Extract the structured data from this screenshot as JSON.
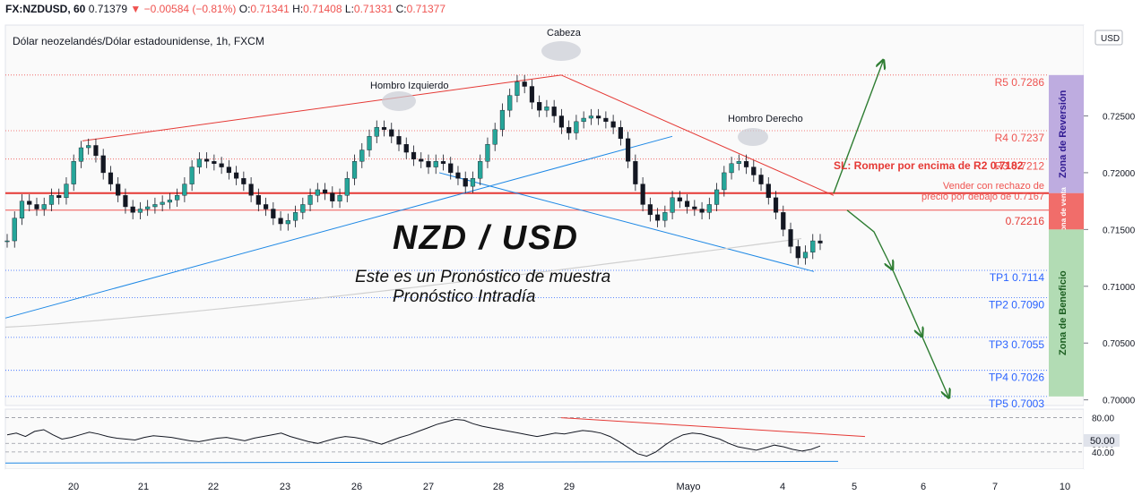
{
  "header": {
    "symbol": "FX:NZDUSD, 60",
    "last": "0.71379",
    "arrow": "▼",
    "change": "−0.00584 (−0.81%)",
    "o_label": "O:",
    "o": "0.71341",
    "h_label": "H:",
    "h": "0.71408",
    "l_label": "L:",
    "l": "0.71331",
    "c_label": "C:",
    "c": "0.71377"
  },
  "chart_data": {
    "type": "candlestick",
    "title": "Dólar neozelandés/Dólar estadounidense, 1h, FXCM",
    "currency": "USD",
    "overlay_title": "NZD / USD",
    "overlay_sub1": "Este es un Pronóstico de muestra",
    "overlay_sub2": "Pronóstico Intradía",
    "ylim": [
      0.6995,
      0.733
    ],
    "yticks": [
      "0.72500",
      "0.72000",
      "0.71500",
      "0.71000",
      "0.70500",
      "0.70000"
    ],
    "ytick_values": [
      0.725,
      0.72,
      0.715,
      0.71,
      0.705,
      0.7
    ],
    "xticks": [
      "20",
      "21",
      "22",
      "23",
      "26",
      "27",
      "28",
      "29",
      "Mayo",
      "4",
      "5",
      "6",
      "7",
      "10"
    ],
    "price_series": [
      0.714,
      0.716,
      0.7175,
      0.7172,
      0.7168,
      0.7172,
      0.718,
      0.7178,
      0.719,
      0.721,
      0.7222,
      0.7224,
      0.7215,
      0.72,
      0.719,
      0.718,
      0.717,
      0.7165,
      0.7168,
      0.717,
      0.7172,
      0.7174,
      0.7176,
      0.718,
      0.719,
      0.7205,
      0.7212,
      0.721,
      0.7208,
      0.7205,
      0.72,
      0.7195,
      0.719,
      0.718,
      0.7172,
      0.7168,
      0.716,
      0.7155,
      0.7158,
      0.7165,
      0.7172,
      0.718,
      0.7185,
      0.7182,
      0.7175,
      0.718,
      0.7195,
      0.721,
      0.722,
      0.7232,
      0.724,
      0.7238,
      0.7232,
      0.7225,
      0.7218,
      0.7212,
      0.721,
      0.7205,
      0.721,
      0.7208,
      0.72,
      0.7195,
      0.7188,
      0.7195,
      0.721,
      0.7225,
      0.7238,
      0.7255,
      0.7268,
      0.728,
      0.7276,
      0.7262,
      0.7255,
      0.7258,
      0.725,
      0.724,
      0.7235,
      0.7245,
      0.7248,
      0.725,
      0.7248,
      0.7245,
      0.724,
      0.723,
      0.721,
      0.719,
      0.7172,
      0.7163,
      0.7158,
      0.7165,
      0.7178,
      0.7175,
      0.717,
      0.7168,
      0.7165,
      0.7172,
      0.7185,
      0.72,
      0.7208,
      0.721,
      0.7205,
      0.7198,
      0.719,
      0.7178,
      0.7165,
      0.715,
      0.7135,
      0.7125,
      0.713,
      0.714,
      0.7138
    ],
    "rsi_series": [
      60,
      62,
      58,
      64,
      66,
      60,
      55,
      57,
      60,
      63,
      61,
      58,
      56,
      55,
      54,
      57,
      59,
      58,
      57,
      55,
      53,
      52,
      54,
      56,
      57,
      55,
      53,
      56,
      58,
      60,
      62,
      58,
      55,
      52,
      50,
      53,
      56,
      58,
      57,
      55,
      52,
      49,
      53,
      57,
      60,
      64,
      68,
      72,
      75,
      78,
      77,
      73,
      70,
      68,
      66,
      64,
      62,
      60,
      58,
      60,
      62,
      61,
      63,
      65,
      64,
      62,
      58,
      52,
      45,
      38,
      35,
      40,
      48,
      55,
      60,
      62,
      61,
      58,
      55,
      50,
      46,
      44,
      42,
      45,
      48,
      46,
      43,
      41,
      43,
      47
    ],
    "rsi_yticks": [
      "80.00",
      "50.00",
      "40.00"
    ],
    "rsi_value": "50.00",
    "annotations": {
      "head": "Cabeza",
      "left_shoulder": "Hombro Izquierdo",
      "right_shoulder": "Hombro Derecho",
      "sl": "SL: Romper por encima de R2  0.7182",
      "sell_line1": "Vender con rechazo de",
      "sell_line2": "precio por debajo de 0.7167",
      "price_tag": "0.72216"
    },
    "levels": [
      {
        "label": "R5  0.7286",
        "value": 0.7286,
        "kind": "resistance"
      },
      {
        "label": "R4  0.7237",
        "value": 0.7237,
        "kind": "resistance"
      },
      {
        "label": "R3  0.7212",
        "value": 0.7212,
        "kind": "resistance"
      },
      {
        "label": "R2",
        "value": 0.7182,
        "kind": "stop"
      },
      {
        "label": "",
        "value": 0.7167,
        "kind": "entry"
      },
      {
        "label": "TP1  0.7114",
        "value": 0.7114,
        "kind": "target"
      },
      {
        "label": "TP2  0.7090",
        "value": 0.709,
        "kind": "target"
      },
      {
        "label": "TP3  0.7055",
        "value": 0.7055,
        "kind": "target"
      },
      {
        "label": "TP4  0.7026",
        "value": 0.7026,
        "kind": "target"
      },
      {
        "label": "TP5  0.7003",
        "value": 0.7003,
        "kind": "target"
      }
    ],
    "zones": [
      {
        "label": "Zona de Reversión",
        "from": 0.7286,
        "to": 0.7182,
        "color": "#b39ddb"
      },
      {
        "label": "Zona de venta",
        "from": 0.7182,
        "to": 0.715,
        "color": "#ef5350"
      },
      {
        "label": "Zona de Beneficio",
        "from": 0.715,
        "to": 0.7003,
        "color": "#a5d6a7"
      }
    ],
    "colors": {
      "up": "#26a69a",
      "down": "#131722",
      "resistance": "#ef5350",
      "target": "#2962ff",
      "trend_blue": "#1e88e5",
      "trend_red": "#e53935",
      "arrow": "#2e7d32"
    }
  }
}
